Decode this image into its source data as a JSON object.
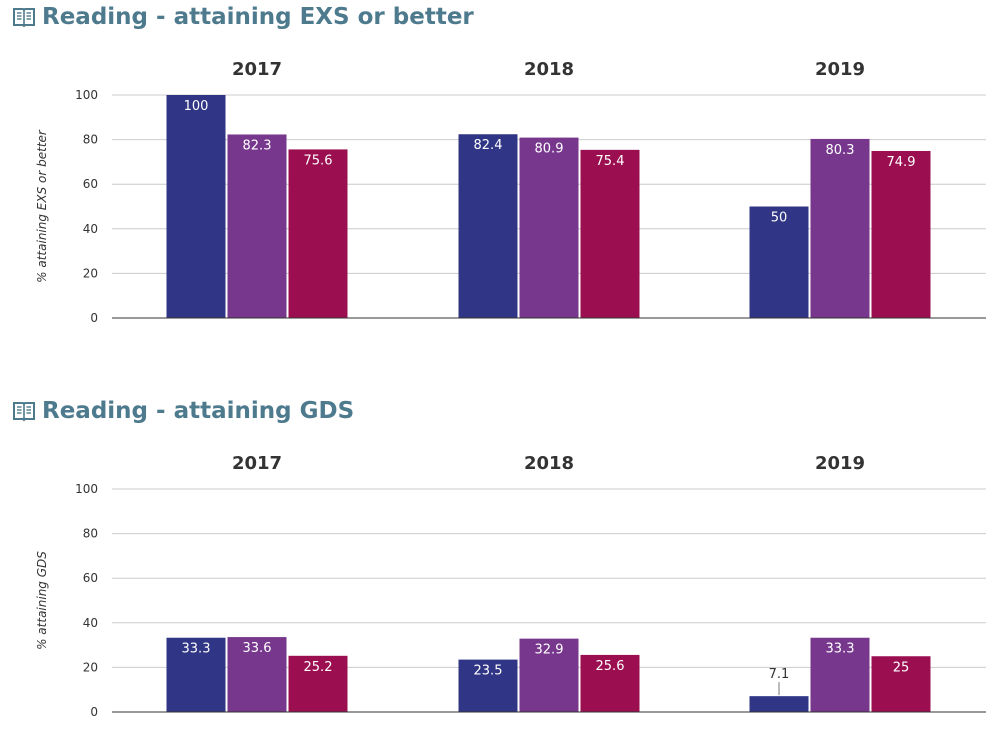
{
  "colors": {
    "title": "#4e7a8e",
    "series": [
      "#303585",
      "#77378d",
      "#9b0f51"
    ],
    "grid": "#cccccc",
    "axis": "#333333",
    "text": "#333333"
  },
  "charts": [
    {
      "title": "Reading - attaining EXS or better",
      "icon": "book-icon"
    },
    {
      "title": "Reading - attaining GDS",
      "icon": "book-icon"
    }
  ],
  "chart_data": [
    {
      "type": "bar",
      "title": "Reading - attaining EXS or better",
      "ylabel": "% attaining EXS or better",
      "ylim": [
        0,
        100
      ],
      "yticks": [
        0,
        20,
        40,
        60,
        80,
        100
      ],
      "grid": true,
      "groups": [
        {
          "label": "2017",
          "values": [
            100,
            82.3,
            75.6
          ]
        },
        {
          "label": "2018",
          "values": [
            82.4,
            80.9,
            75.4
          ]
        },
        {
          "label": "2019",
          "values": [
            50,
            80.3,
            74.9
          ]
        }
      ]
    },
    {
      "type": "bar",
      "title": "Reading - attaining GDS",
      "ylabel": "% attaining GDS",
      "ylim": [
        0,
        100
      ],
      "yticks": [
        0,
        20,
        40,
        60,
        80,
        100
      ],
      "grid": true,
      "groups": [
        {
          "label": "2017",
          "values": [
            33.3,
            33.6,
            25.2
          ]
        },
        {
          "label": "2018",
          "values": [
            23.5,
            32.9,
            25.6
          ]
        },
        {
          "label": "2019",
          "values": [
            7.1,
            33.3,
            25
          ]
        }
      ]
    }
  ]
}
